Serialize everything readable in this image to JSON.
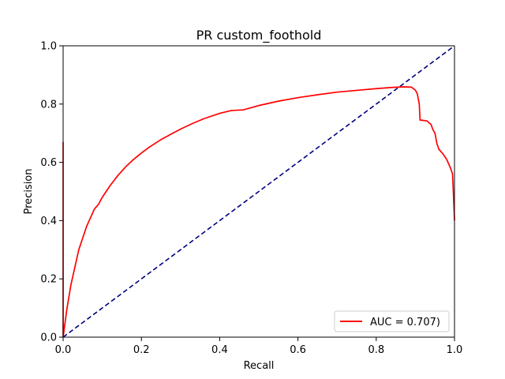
{
  "chart_data": {
    "type": "line",
    "title": "PR custom_foothold",
    "xlabel": "Recall",
    "ylabel": "Precision",
    "xlim": [
      0.0,
      1.0
    ],
    "ylim": [
      0.0,
      1.0
    ],
    "xticks": [
      0.0,
      0.2,
      0.4,
      0.6,
      0.8,
      1.0
    ],
    "yticks": [
      0.0,
      0.2,
      0.4,
      0.6,
      0.8,
      1.0
    ],
    "xtick_labels": [
      "0.0",
      "0.2",
      "0.4",
      "0.6",
      "0.8",
      "1.0"
    ],
    "ytick_labels": [
      "0.0",
      "0.2",
      "0.4",
      "0.6",
      "0.8",
      "1.0"
    ],
    "grid": false,
    "legend_position": "lower-right",
    "series": [
      {
        "name": "AUC = 0.707)",
        "color": "#ff0000",
        "style": "solid",
        "x": [
          0.0,
          0.0,
          0.0,
          0.005,
          0.01,
          0.02,
          0.03,
          0.04,
          0.05,
          0.06,
          0.07,
          0.08,
          0.09,
          0.1,
          0.12,
          0.14,
          0.16,
          0.18,
          0.2,
          0.22,
          0.25,
          0.28,
          0.3,
          0.33,
          0.36,
          0.4,
          0.43,
          0.46,
          0.5,
          0.55,
          0.6,
          0.65,
          0.7,
          0.75,
          0.8,
          0.84,
          0.87,
          0.89,
          0.9,
          0.905,
          0.91,
          0.912,
          0.915,
          0.93,
          0.94,
          0.945,
          0.95,
          0.955,
          0.96,
          0.97,
          0.98,
          0.99,
          0.995,
          0.997,
          1.0
        ],
        "y": [
          0.67,
          0.2,
          0.0,
          0.05,
          0.1,
          0.18,
          0.24,
          0.3,
          0.34,
          0.38,
          0.41,
          0.44,
          0.455,
          0.48,
          0.52,
          0.555,
          0.585,
          0.61,
          0.632,
          0.652,
          0.678,
          0.7,
          0.714,
          0.733,
          0.75,
          0.768,
          0.778,
          0.78,
          0.795,
          0.81,
          0.822,
          0.832,
          0.841,
          0.847,
          0.853,
          0.857,
          0.859,
          0.858,
          0.848,
          0.835,
          0.8,
          0.745,
          0.745,
          0.742,
          0.73,
          0.712,
          0.7,
          0.665,
          0.645,
          0.63,
          0.61,
          0.58,
          0.56,
          0.5,
          0.4
        ]
      },
      {
        "name": "",
        "color": "#000080",
        "style": "dashed",
        "x": [
          0.0,
          1.0
        ],
        "y": [
          0.0,
          1.0
        ]
      }
    ]
  }
}
